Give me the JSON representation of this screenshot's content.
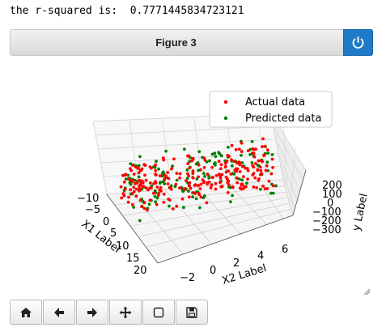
{
  "output": {
    "text": "the r-squared is:  0.7771445834723121"
  },
  "figure": {
    "title": "Figure 3",
    "power_icon": "power-icon",
    "accent": "#1f7ac8"
  },
  "toolbar": {
    "icons": [
      "home-icon",
      "back-arrow-icon",
      "forward-arrow-icon",
      "move-icon",
      "zoom-rect-icon",
      "save-icon"
    ]
  },
  "chart_data": {
    "type": "scatter",
    "projection": "3d",
    "xlabel": "X1 Label",
    "ylabel": "X2 Label",
    "zlabel": "y Label",
    "x_ticks": [
      "−10",
      "−5",
      "0",
      "5",
      "10",
      "15",
      "20"
    ],
    "y_ticks": [
      "−2",
      "0",
      "2",
      "4",
      "6"
    ],
    "z_ticks": [
      "200",
      "100",
      "0",
      "−100",
      "−200",
      "−300"
    ],
    "legend": {
      "position": "top-right",
      "entries": [
        "Actual data",
        "Predicted data"
      ]
    },
    "series": [
      {
        "name": "Actual data",
        "color": "#ff0000"
      },
      {
        "name": "Predicted data",
        "color": "#008000"
      }
    ],
    "grid": true
  }
}
